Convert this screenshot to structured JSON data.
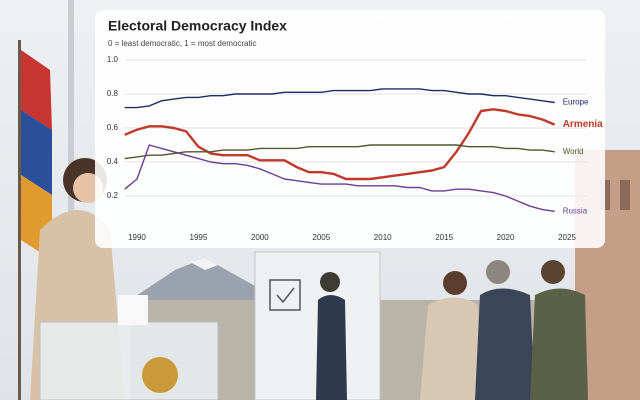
{
  "chart_data": {
    "type": "line",
    "title": "Electoral Democracy Index",
    "subtitle": "0 = least democratic, 1 = most democratic",
    "x": [
      1989,
      1990,
      1991,
      1992,
      1993,
      1994,
      1995,
      1996,
      1997,
      1998,
      1999,
      2000,
      2001,
      2002,
      2003,
      2004,
      2005,
      2006,
      2007,
      2008,
      2009,
      2010,
      2011,
      2012,
      2013,
      2014,
      2015,
      2016,
      2017,
      2018,
      2019,
      2020,
      2021,
      2022,
      2023,
      2024
    ],
    "series": [
      {
        "name": "Europe",
        "color": "#1f2d66",
        "values": [
          0.72,
          0.72,
          0.73,
          0.76,
          0.77,
          0.78,
          0.78,
          0.79,
          0.79,
          0.8,
          0.8,
          0.8,
          0.8,
          0.81,
          0.81,
          0.81,
          0.81,
          0.82,
          0.82,
          0.82,
          0.82,
          0.83,
          0.83,
          0.83,
          0.83,
          0.82,
          0.82,
          0.81,
          0.8,
          0.8,
          0.79,
          0.79,
          0.78,
          0.77,
          0.76,
          0.75
        ]
      },
      {
        "name": "Armenia",
        "color": "#c0392b",
        "values": [
          0.56,
          0.59,
          0.61,
          0.61,
          0.6,
          0.58,
          0.49,
          0.45,
          0.44,
          0.44,
          0.44,
          0.41,
          0.41,
          0.41,
          0.37,
          0.34,
          0.34,
          0.33,
          0.3,
          0.3,
          0.3,
          0.31,
          0.32,
          0.33,
          0.34,
          0.35,
          0.37,
          0.46,
          0.57,
          0.7,
          0.71,
          0.7,
          0.68,
          0.67,
          0.65,
          0.62
        ]
      },
      {
        "name": "World",
        "color": "#4d5a2c",
        "values": [
          0.42,
          0.43,
          0.44,
          0.44,
          0.45,
          0.46,
          0.46,
          0.46,
          0.47,
          0.47,
          0.47,
          0.48,
          0.48,
          0.48,
          0.48,
          0.49,
          0.49,
          0.49,
          0.49,
          0.49,
          0.5,
          0.5,
          0.5,
          0.5,
          0.5,
          0.5,
          0.5,
          0.5,
          0.49,
          0.49,
          0.49,
          0.48,
          0.48,
          0.47,
          0.47,
          0.46
        ]
      },
      {
        "name": "Russia",
        "color": "#6b3f93",
        "values": [
          0.24,
          0.3,
          0.5,
          0.48,
          0.46,
          0.44,
          0.42,
          0.4,
          0.39,
          0.39,
          0.38,
          0.36,
          0.33,
          0.3,
          0.29,
          0.28,
          0.27,
          0.27,
          0.27,
          0.26,
          0.26,
          0.26,
          0.26,
          0.25,
          0.25,
          0.23,
          0.23,
          0.24,
          0.24,
          0.23,
          0.22,
          0.2,
          0.17,
          0.14,
          0.12,
          0.11
        ]
      }
    ],
    "xlim": [
      1989,
      2025
    ],
    "xticks": [
      1990,
      1995,
      2000,
      2005,
      2010,
      2015,
      2020,
      2025
    ],
    "ylim": [
      0,
      1
    ],
    "yticks": [
      {
        "value": 1,
        "label": "1.0"
      },
      0.8,
      0.6,
      0.4,
      0.2
    ],
    "grid": true,
    "highlight": "Armenia"
  }
}
